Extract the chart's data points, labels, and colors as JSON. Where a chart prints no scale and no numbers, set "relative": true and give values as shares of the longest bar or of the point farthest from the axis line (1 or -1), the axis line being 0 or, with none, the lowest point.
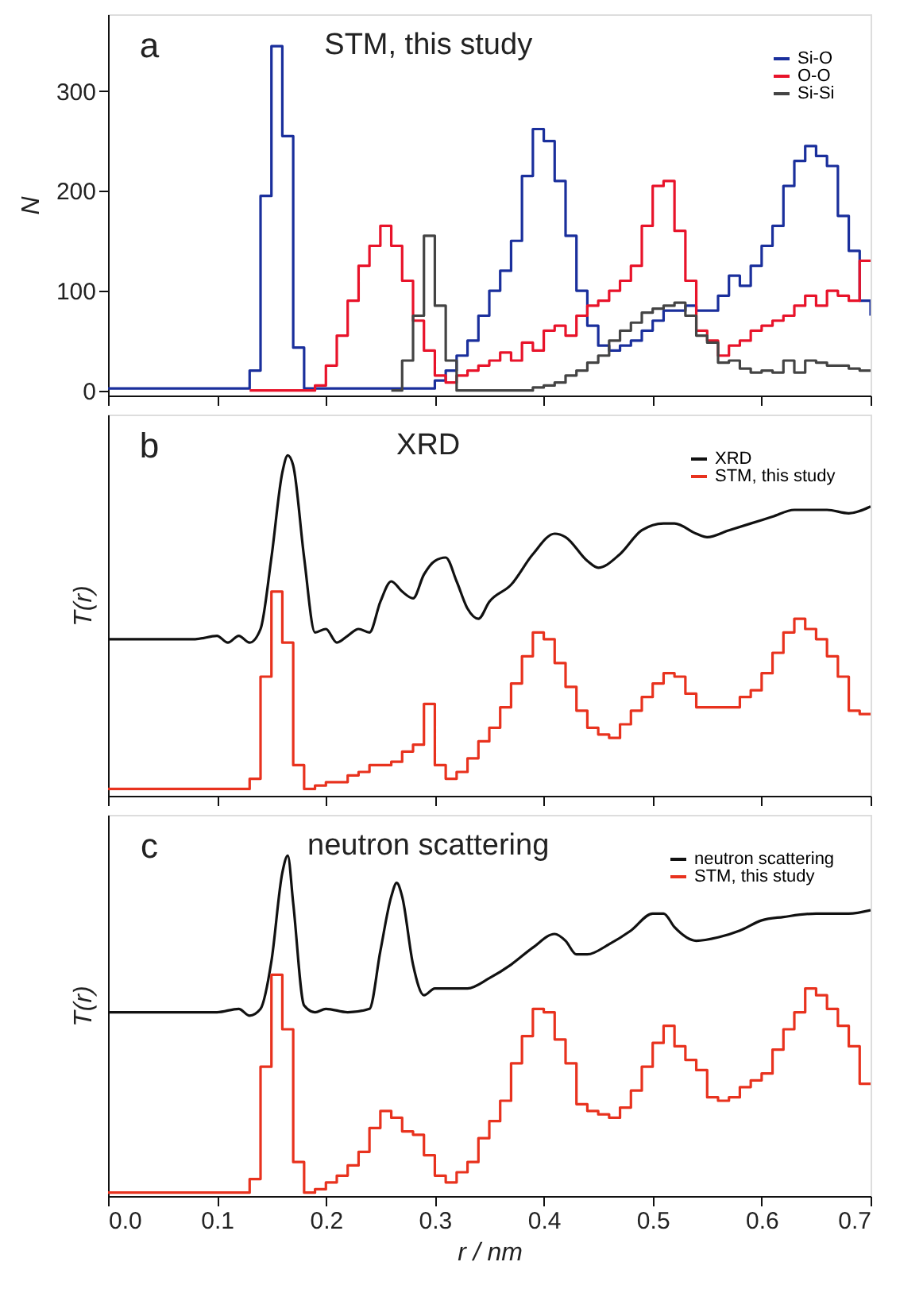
{
  "chart_data": [
    {
      "type": "step",
      "title": "STM, this study",
      "ylabel": "N",
      "annotations": [
        "a"
      ],
      "legend": "top right",
      "grid": false,
      "marker": "none",
      "line_style": "solid",
      "tick_labels": "y",
      "xlim": [
        0,
        0.7
      ],
      "xticks": [
        0,
        0.1,
        0.2,
        0.3,
        0.4,
        0.5,
        0.6,
        0.7
      ],
      "ylim": [
        -5,
        377
      ],
      "yticks": [
        0,
        100,
        200,
        300
      ],
      "x": [
        0,
        0.01,
        0.02,
        0.03,
        0.04,
        0.05,
        0.06,
        0.07,
        0.08,
        0.09,
        0.1,
        0.11,
        0.12,
        0.13,
        0.14,
        0.15,
        0.16,
        0.17,
        0.18,
        0.19,
        0.2,
        0.21,
        0.22,
        0.23,
        0.24,
        0.25,
        0.26,
        0.27,
        0.28,
        0.29,
        0.3,
        0.31,
        0.32,
        0.33,
        0.34,
        0.35,
        0.36,
        0.37,
        0.38,
        0.39,
        0.4,
        0.41,
        0.42,
        0.43,
        0.44,
        0.45,
        0.46,
        0.47,
        0.48,
        0.49,
        0.5,
        0.51,
        0.52,
        0.53,
        0.54,
        0.55,
        0.56,
        0.57,
        0.58,
        0.59,
        0.6,
        0.61,
        0.62,
        0.63,
        0.64,
        0.65,
        0.66,
        0.67,
        0.68,
        0.69,
        0.7
      ],
      "series": [
        {
          "name": "Si-O",
          "color": "#1a2f9c",
          "values": [
            2,
            2,
            2,
            2,
            2,
            2,
            2,
            2,
            2,
            2,
            2,
            2,
            2,
            20,
            195,
            345,
            255,
            43,
            2,
            2,
            2,
            2,
            2,
            2,
            2,
            2,
            2,
            2,
            2,
            2,
            10,
            20,
            35,
            50,
            75,
            100,
            120,
            150,
            215,
            262,
            250,
            210,
            155,
            100,
            65,
            45,
            40,
            45,
            50,
            60,
            70,
            80,
            80,
            85,
            80,
            80,
            95,
            115,
            105,
            125,
            145,
            165,
            205,
            230,
            245,
            235,
            225,
            175,
            140,
            90,
            75
          ]
        },
        {
          "name": "O-O",
          "color": "#e8132a",
          "values": [
            null,
            null,
            null,
            null,
            null,
            null,
            null,
            null,
            null,
            null,
            null,
            null,
            null,
            0,
            0,
            0,
            0,
            0,
            0,
            5,
            25,
            55,
            90,
            125,
            145,
            165,
            145,
            110,
            70,
            40,
            15,
            8,
            15,
            20,
            25,
            30,
            38,
            30,
            48,
            40,
            60,
            65,
            55,
            75,
            85,
            90,
            100,
            110,
            125,
            165,
            205,
            210,
            160,
            110,
            60,
            50,
            35,
            45,
            50,
            60,
            65,
            70,
            75,
            85,
            95,
            85,
            100,
            95,
            90,
            130,
            130
          ]
        },
        {
          "name": "Si-Si",
          "color": "#444444",
          "values": [
            null,
            null,
            null,
            null,
            null,
            null,
            null,
            null,
            null,
            null,
            null,
            null,
            null,
            null,
            null,
            null,
            null,
            null,
            null,
            null,
            null,
            null,
            null,
            null,
            null,
            null,
            0,
            30,
            75,
            155,
            85,
            30,
            0,
            0,
            0,
            0,
            0,
            0,
            0,
            3,
            5,
            8,
            15,
            20,
            28,
            35,
            50,
            60,
            68,
            78,
            82,
            85,
            88,
            75,
            55,
            48,
            28,
            30,
            22,
            18,
            20,
            18,
            30,
            18,
            30,
            28,
            25,
            25,
            22,
            20,
            20
          ]
        }
      ]
    },
    {
      "type": "step",
      "title": "XRD",
      "ylabel": "T(r)",
      "annotations": [
        "b"
      ],
      "legend": "top right",
      "grid": false,
      "marker": "none",
      "line_style": "solid",
      "tick_labels": false,
      "relative": true,
      "xlim": [
        0,
        0.7
      ],
      "xticks": [
        0,
        0.1,
        0.2,
        0.3,
        0.4,
        0.5,
        0.6,
        0.7
      ],
      "x": [
        0,
        0.01,
        0.02,
        0.03,
        0.04,
        0.05,
        0.06,
        0.07,
        0.08,
        0.09,
        0.1,
        0.11,
        0.12,
        0.13,
        0.14,
        0.15,
        0.16,
        0.17,
        0.18,
        0.19,
        0.2,
        0.21,
        0.22,
        0.23,
        0.24,
        0.25,
        0.26,
        0.27,
        0.28,
        0.29,
        0.3,
        0.31,
        0.32,
        0.33,
        0.34,
        0.35,
        0.36,
        0.37,
        0.38,
        0.39,
        0.4,
        0.41,
        0.42,
        0.43,
        0.44,
        0.45,
        0.46,
        0.47,
        0.48,
        0.49,
        0.5,
        0.51,
        0.52,
        0.53,
        0.54,
        0.55,
        0.56,
        0.57,
        0.58,
        0.59,
        0.6,
        0.61,
        0.62,
        0.63,
        0.64,
        0.65,
        0.66,
        0.67,
        0.68,
        0.69,
        0.7
      ],
      "series": [
        {
          "name": "XRD",
          "color": "#111111",
          "type": "line",
          "x": [
            0,
            0.05,
            0.08,
            0.1,
            0.11,
            0.12,
            0.13,
            0.14,
            0.15,
            0.16,
            0.165,
            0.17,
            0.18,
            0.19,
            0.2,
            0.21,
            0.22,
            0.23,
            0.24,
            0.25,
            0.26,
            0.27,
            0.28,
            0.29,
            0.3,
            0.31,
            0.32,
            0.33,
            0.34,
            0.35,
            0.37,
            0.39,
            0.41,
            0.42,
            0.44,
            0.45,
            0.47,
            0.49,
            0.51,
            0.52,
            0.54,
            0.55,
            0.57,
            0.59,
            0.61,
            0.63,
            0.66,
            0.68,
            0.7
          ],
          "values": [
            0.46,
            0.46,
            0.46,
            0.47,
            0.45,
            0.47,
            0.45,
            0.49,
            0.7,
            0.95,
            1,
            0.97,
            0.7,
            0.48,
            0.49,
            0.45,
            0.47,
            0.49,
            0.48,
            0.57,
            0.63,
            0.6,
            0.58,
            0.65,
            0.69,
            0.7,
            0.63,
            0.55,
            0.52,
            0.57,
            0.62,
            0.71,
            0.77,
            0.76,
            0.69,
            0.67,
            0.71,
            0.78,
            0.8,
            0.8,
            0.77,
            0.76,
            0.78,
            0.8,
            0.82,
            0.84,
            0.84,
            0.83,
            0.85
          ]
        },
        {
          "name": "STM, this study",
          "color": "#e8321e",
          "values": [
            0.02,
            0.02,
            0.02,
            0.02,
            0.02,
            0.02,
            0.02,
            0.02,
            0.02,
            0.02,
            0.02,
            0.02,
            0.02,
            0.05,
            0.35,
            0.6,
            0.45,
            0.09,
            0.02,
            0.03,
            0.04,
            0.04,
            0.06,
            0.07,
            0.09,
            0.09,
            0.1,
            0.13,
            0.15,
            0.27,
            0.09,
            0.05,
            0.07,
            0.11,
            0.16,
            0.2,
            0.26,
            0.33,
            0.41,
            0.48,
            0.46,
            0.39,
            0.32,
            0.25,
            0.2,
            0.18,
            0.17,
            0.21,
            0.25,
            0.29,
            0.33,
            0.36,
            0.35,
            0.3,
            0.26,
            0.26,
            0.26,
            0.26,
            0.29,
            0.31,
            0.36,
            0.42,
            0.48,
            0.52,
            0.49,
            0.46,
            0.41,
            0.35,
            0.25,
            0.24,
            0.24
          ]
        }
      ]
    },
    {
      "type": "step",
      "title": "neutron scattering",
      "ylabel": "T(r)",
      "xlabel": "r / nm",
      "annotations": [
        "c"
      ],
      "legend": "top right",
      "grid": false,
      "marker": "none",
      "line_style": "solid",
      "tick_labels": "x",
      "relative": true,
      "xlim": [
        0,
        0.7
      ],
      "xticks": [
        {
          "value": 0,
          "label": "0.0"
        },
        0.1,
        0.2,
        0.3,
        0.4,
        0.5,
        0.6,
        0.7
      ],
      "x": [
        0,
        0.01,
        0.02,
        0.03,
        0.04,
        0.05,
        0.06,
        0.07,
        0.08,
        0.09,
        0.1,
        0.11,
        0.12,
        0.13,
        0.14,
        0.15,
        0.16,
        0.17,
        0.18,
        0.19,
        0.2,
        0.21,
        0.22,
        0.23,
        0.24,
        0.25,
        0.26,
        0.27,
        0.28,
        0.29,
        0.3,
        0.31,
        0.32,
        0.33,
        0.34,
        0.35,
        0.36,
        0.37,
        0.38,
        0.39,
        0.4,
        0.41,
        0.42,
        0.43,
        0.44,
        0.45,
        0.46,
        0.47,
        0.48,
        0.49,
        0.5,
        0.51,
        0.52,
        0.53,
        0.54,
        0.55,
        0.56,
        0.57,
        0.58,
        0.59,
        0.6,
        0.61,
        0.62,
        0.63,
        0.64,
        0.65,
        0.66,
        0.67,
        0.68,
        0.69,
        0.7
      ],
      "series": [
        {
          "name": "neutron scattering",
          "color": "#111111",
          "type": "line",
          "x": [
            0,
            0.05,
            0.1,
            0.12,
            0.13,
            0.14,
            0.15,
            0.16,
            0.165,
            0.17,
            0.18,
            0.19,
            0.2,
            0.22,
            0.24,
            0.25,
            0.26,
            0.265,
            0.27,
            0.28,
            0.29,
            0.3,
            0.31,
            0.32,
            0.33,
            0.35,
            0.37,
            0.39,
            0.41,
            0.42,
            0.43,
            0.44,
            0.46,
            0.48,
            0.5,
            0.51,
            0.52,
            0.54,
            0.56,
            0.58,
            0.6,
            0.62,
            0.65,
            0.68,
            0.7
          ],
          "values": [
            0.54,
            0.54,
            0.54,
            0.55,
            0.53,
            0.55,
            0.69,
            0.95,
            1,
            0.86,
            0.56,
            0.54,
            0.55,
            0.54,
            0.55,
            0.72,
            0.88,
            0.92,
            0.88,
            0.68,
            0.59,
            0.61,
            0.61,
            0.61,
            0.61,
            0.64,
            0.68,
            0.73,
            0.77,
            0.75,
            0.71,
            0.71,
            0.74,
            0.78,
            0.83,
            0.83,
            0.79,
            0.75,
            0.76,
            0.78,
            0.81,
            0.82,
            0.83,
            0.83,
            0.84
          ]
        },
        {
          "name": "STM, this study",
          "color": "#e8321e",
          "values": [
            0.01,
            0.01,
            0.01,
            0.01,
            0.01,
            0.01,
            0.01,
            0.01,
            0.01,
            0.01,
            0.01,
            0.01,
            0.01,
            0.05,
            0.38,
            0.65,
            0.49,
            0.1,
            0.01,
            0.02,
            0.04,
            0.06,
            0.09,
            0.13,
            0.2,
            0.25,
            0.23,
            0.19,
            0.18,
            0.12,
            0.06,
            0.04,
            0.07,
            0.1,
            0.17,
            0.22,
            0.28,
            0.39,
            0.47,
            0.55,
            0.54,
            0.46,
            0.39,
            0.27,
            0.25,
            0.24,
            0.23,
            0.26,
            0.31,
            0.38,
            0.45,
            0.5,
            0.44,
            0.4,
            0.37,
            0.29,
            0.28,
            0.29,
            0.32,
            0.34,
            0.36,
            0.43,
            0.49,
            0.54,
            0.61,
            0.59,
            0.55,
            0.5,
            0.44,
            0.33,
            0.33
          ]
        }
      ]
    }
  ]
}
